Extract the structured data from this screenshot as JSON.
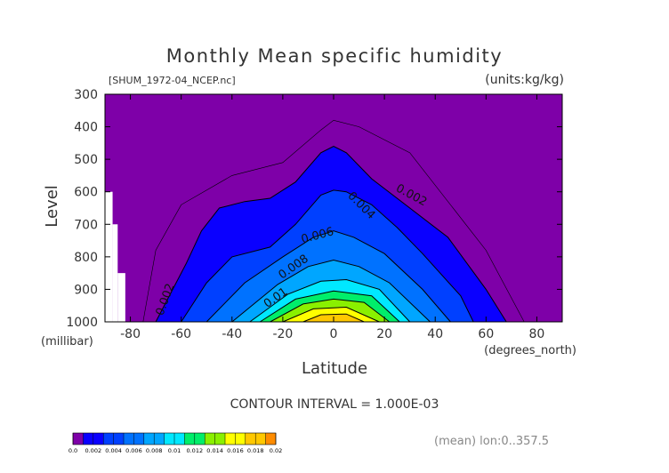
{
  "title": "Monthly Mean specific humidity",
  "file_label": "[SHUM_1972-04_NCEP.nc]",
  "units_label": "(units:kg/kg)",
  "y_axis_label": "Level",
  "y_units_label": "(millibar)",
  "x_axis_label": "Latitude",
  "x_units_label": "(degrees_north)",
  "contour_interval_label": "CONTOUR INTERVAL = 1.000E-03",
  "mean_label": "(mean) lon:0..357.5",
  "contour_labels": [
    {
      "text": "0.002",
      "lat": 30,
      "lev": 620,
      "rot": 28
    },
    {
      "text": "0.004",
      "lat": 10,
      "lev": 650,
      "rot": 45
    },
    {
      "text": "0.006",
      "lat": -6,
      "lev": 745,
      "rot": -15
    },
    {
      "text": "0.008",
      "lat": -15,
      "lev": 840,
      "rot": -35
    },
    {
      "text": "0.01",
      "lat": -22,
      "lev": 935,
      "rot": -35
    },
    {
      "text": "0.002",
      "lat": -65,
      "lev": 935,
      "rot": -70
    }
  ],
  "colors": {
    "background_fill": "#7e00a8",
    "levels": [
      "#7e00a8",
      "#0a00ff",
      "#0040ff",
      "#0072ff",
      "#00a6ff",
      "#00e8ff",
      "#00ee6a",
      "#8af000",
      "#ffff00",
      "#ffc800",
      "#ff8c00",
      "#ff4600",
      "#ff0000"
    ]
  },
  "chart_data": {
    "type": "heatmap",
    "subtype": "filled-contour",
    "x_var": "latitude",
    "y_var": "pressure level",
    "xlim": [
      -90,
      90
    ],
    "ylim": [
      1000,
      300
    ],
    "x_ticks": [
      -80,
      -60,
      -40,
      -20,
      0,
      20,
      40,
      60,
      80
    ],
    "y_ticks": [
      300,
      400,
      500,
      600,
      700,
      800,
      900,
      1000
    ],
    "contour_interval": 0.001,
    "colorbar": {
      "levels": [
        0.0,
        0.002,
        0.004,
        0.006,
        0.008,
        0.01,
        0.012,
        0.014,
        0.016,
        0.018,
        0.02
      ],
      "tick_labels": [
        "0.0",
        "0.002",
        "0.004",
        "0.006",
        "0.008",
        "0.01",
        "0.012",
        "0.014",
        "0.016",
        "0.018",
        "0.02"
      ]
    },
    "series": [
      {
        "value": 0.001,
        "lat": [
          -75,
          -70,
          -60,
          -40,
          -20,
          -5,
          0,
          10,
          30,
          60,
          75
        ],
        "top": [
          1000,
          780,
          640,
          550,
          510,
          410,
          380,
          400,
          480,
          780,
          1000
        ]
      },
      {
        "value": 0.002,
        "lat": [
          -70,
          -58,
          -52,
          -45,
          -35,
          -25,
          -15,
          -5,
          0,
          5,
          15,
          30,
          45,
          60,
          68
        ],
        "top": [
          1000,
          820,
          720,
          650,
          630,
          620,
          570,
          480,
          460,
          480,
          560,
          650,
          740,
          900,
          1000
        ]
      },
      {
        "value": 0.004,
        "lat": [
          -60,
          -50,
          -40,
          -25,
          -15,
          -5,
          0,
          5,
          15,
          25,
          35,
          50,
          55
        ],
        "top": [
          1000,
          880,
          800,
          770,
          700,
          610,
          595,
          600,
          640,
          710,
          790,
          920,
          1000
        ]
      },
      {
        "value": 0.006,
        "lat": [
          -50,
          -35,
          -20,
          -8,
          0,
          8,
          20,
          35,
          46
        ],
        "top": [
          1000,
          880,
          800,
          740,
          720,
          740,
          790,
          900,
          1000
        ]
      },
      {
        "value": 0.008,
        "lat": [
          -40,
          -22,
          -10,
          0,
          10,
          22,
          38
        ],
        "top": [
          1000,
          885,
          830,
          810,
          830,
          880,
          1000
        ]
      },
      {
        "value": 0.01,
        "lat": [
          -33,
          -18,
          -5,
          5,
          18,
          30
        ],
        "top": [
          1000,
          915,
          875,
          870,
          900,
          1000
        ]
      },
      {
        "value": 0.012,
        "lat": [
          -29,
          -15,
          0,
          15,
          26
        ],
        "top": [
          1000,
          930,
          905,
          920,
          1000
        ]
      },
      {
        "value": 0.014,
        "lat": [
          -25,
          -12,
          0,
          12,
          22
        ],
        "top": [
          1000,
          945,
          930,
          940,
          1000
        ]
      },
      {
        "value": 0.016,
        "lat": [
          -20,
          -8,
          5,
          18
        ],
        "top": [
          1000,
          960,
          955,
          1000
        ]
      },
      {
        "value": 0.018,
        "lat": [
          -12,
          -5,
          5,
          12
        ],
        "top": [
          1000,
          978,
          976,
          1000
        ]
      }
    ],
    "missing_regions": [
      {
        "lat": [
          -90,
          -87
        ],
        "lev": [
          600,
          1000
        ]
      },
      {
        "lat": [
          -87,
          -85
        ],
        "lev": [
          700,
          1000
        ]
      },
      {
        "lat": [
          -85,
          -82
        ],
        "lev": [
          850,
          1000
        ]
      }
    ]
  }
}
